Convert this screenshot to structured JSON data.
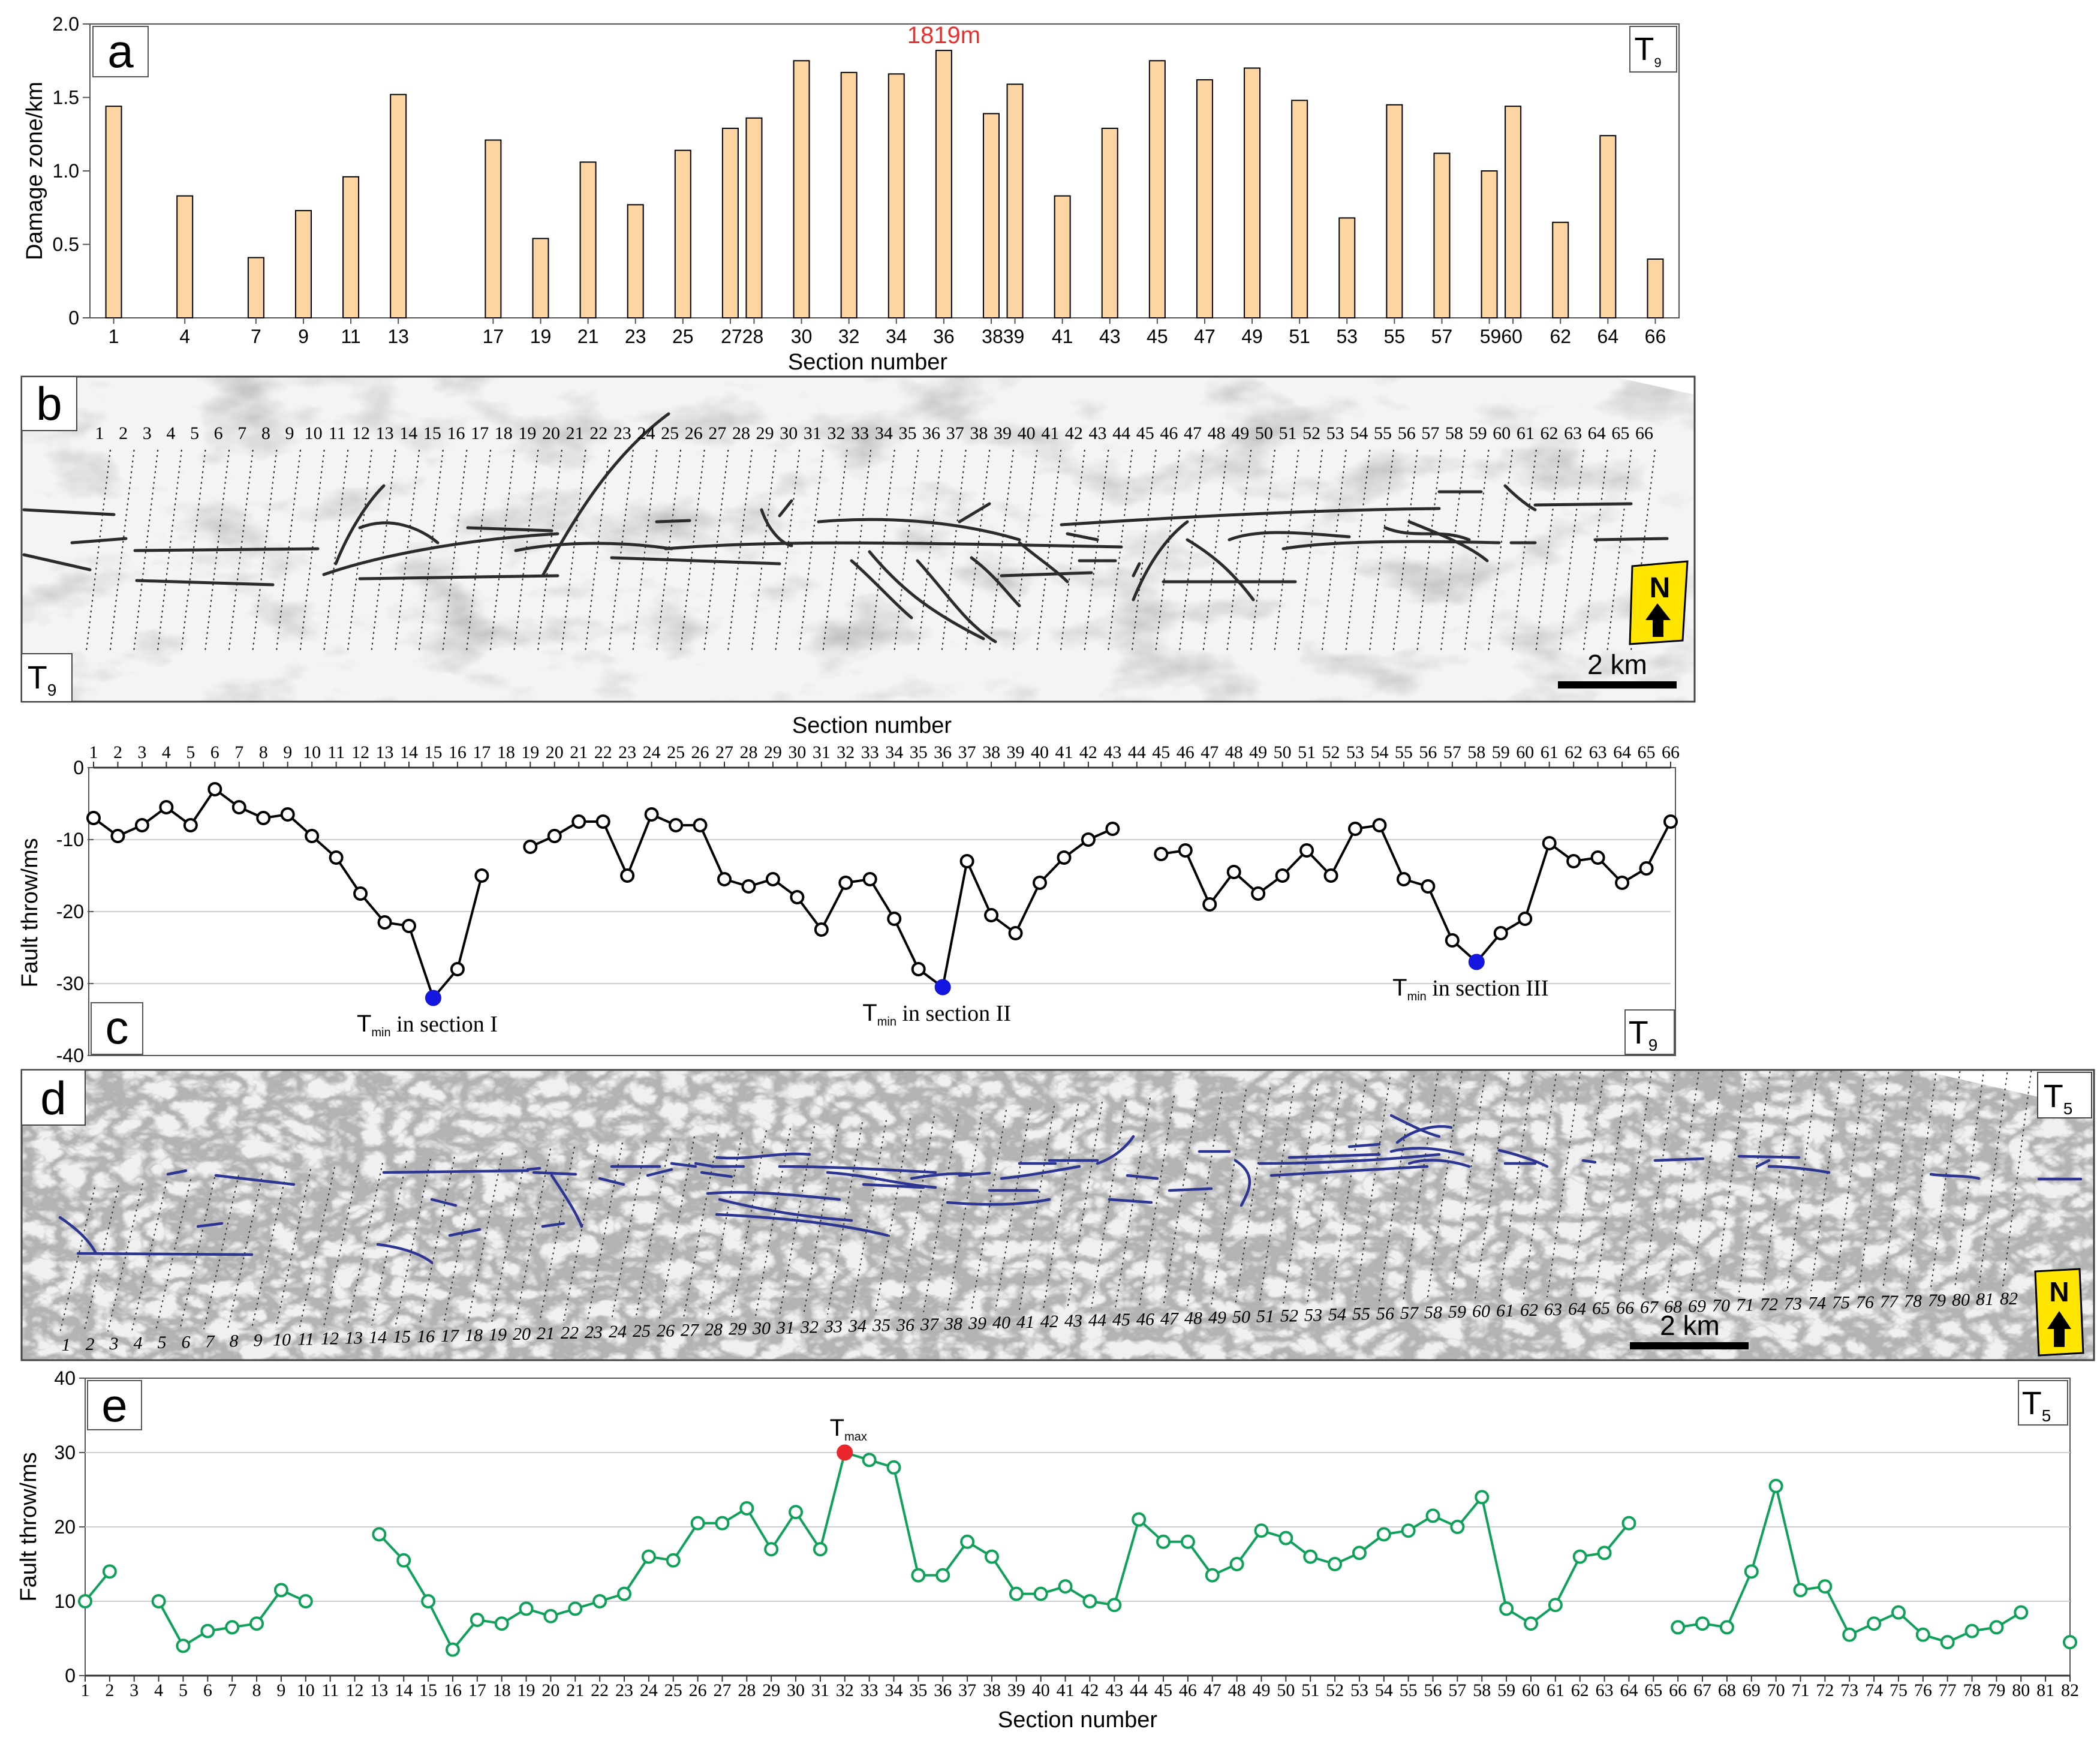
{
  "panels": {
    "a": {
      "label": "a",
      "horizon": "T",
      "horizon_sub": "9"
    },
    "b": {
      "label": "b",
      "horizon": "T",
      "horizon_sub": "9",
      "scale_text": "2 km",
      "north_text": "N"
    },
    "c": {
      "label": "c",
      "horizon": "T",
      "horizon_sub": "9",
      "top_axis_title": "Section number"
    },
    "d": {
      "label": "d",
      "horizon": "T",
      "horizon_sub": "5",
      "scale_text": "2 km",
      "north_text": "N"
    },
    "e": {
      "label": "e",
      "horizon": "T",
      "horizon_sub": "5"
    }
  },
  "chart_data": [
    {
      "id": "a",
      "type": "bar",
      "xlabel": "Section number",
      "ylabel": "Damage zone/km",
      "ylim": [
        0,
        2.0
      ],
      "yticks": [
        "0",
        "0.5",
        "1.0",
        "1.5",
        "2.0"
      ],
      "x_range": [
        0,
        67
      ],
      "grid": false,
      "bar_color": "#fcd5a2",
      "annotation": {
        "text": "1819m",
        "at_section": 36,
        "color": "#e8312f"
      },
      "bars": [
        {
          "section": 1,
          "value": 1.44,
          "label": "1"
        },
        {
          "section": 4,
          "value": 0.83,
          "label": "4"
        },
        {
          "section": 7,
          "value": 0.41,
          "label": "7"
        },
        {
          "section": 9,
          "value": 0.73,
          "label": "9"
        },
        {
          "section": 11,
          "value": 0.96,
          "label": "11"
        },
        {
          "section": 13,
          "value": 1.52,
          "label": "13"
        },
        {
          "section": 17,
          "value": 1.21,
          "label": "17"
        },
        {
          "section": 19,
          "value": 0.54,
          "label": "19"
        },
        {
          "section": 21,
          "value": 1.06,
          "label": "21"
        },
        {
          "section": 23,
          "value": 0.77,
          "label": "23"
        },
        {
          "section": 25,
          "value": 1.14,
          "label": "25"
        },
        {
          "section": 27,
          "value": 1.29,
          "label": ""
        },
        {
          "section": 28,
          "value": 1.36,
          "label": ""
        },
        {
          "section": 30,
          "value": 1.75,
          "label": "30"
        },
        {
          "section": 32,
          "value": 1.67,
          "label": "32"
        },
        {
          "section": 34,
          "value": 1.66,
          "label": "34"
        },
        {
          "section": 36,
          "value": 1.82,
          "label": "36"
        },
        {
          "section": 38,
          "value": 1.39,
          "label": ""
        },
        {
          "section": 39,
          "value": 1.59,
          "label": ""
        },
        {
          "section": 41,
          "value": 0.83,
          "label": "41"
        },
        {
          "section": 43,
          "value": 1.29,
          "label": "43"
        },
        {
          "section": 45,
          "value": 1.75,
          "label": "45"
        },
        {
          "section": 47,
          "value": 1.62,
          "label": "47"
        },
        {
          "section": 49,
          "value": 1.7,
          "label": "49"
        },
        {
          "section": 51,
          "value": 1.48,
          "label": "51"
        },
        {
          "section": 53,
          "value": 0.68,
          "label": "53"
        },
        {
          "section": 55,
          "value": 1.45,
          "label": "55"
        },
        {
          "section": 57,
          "value": 1.12,
          "label": "57"
        },
        {
          "section": 59,
          "value": 1.0,
          "label": ""
        },
        {
          "section": 60,
          "value": 1.44,
          "label": ""
        },
        {
          "section": 62,
          "value": 0.65,
          "label": "62"
        },
        {
          "section": 64,
          "value": 1.24,
          "label": "64"
        },
        {
          "section": 66,
          "value": 0.4,
          "label": "66"
        }
      ],
      "group_labels": [
        {
          "text": "2728",
          "at": 27.5
        },
        {
          "text": "3839",
          "at": 38.5
        },
        {
          "text": "5960",
          "at": 59.5
        }
      ]
    },
    {
      "id": "c",
      "type": "line",
      "xlabel": "Section number",
      "ylabel": "Fault throw/ms",
      "ylim": [
        -40,
        0
      ],
      "yticks": [
        "0",
        "-10",
        "-20",
        "-30",
        "-40"
      ],
      "x_range": [
        1,
        66
      ],
      "grid": true,
      "line_color": "#000000",
      "min_color": "#1515e0",
      "series": [
        {
          "sections": [
            1,
            2,
            3,
            4,
            5,
            6,
            7,
            8,
            9,
            10,
            11,
            12,
            13,
            14,
            15,
            16,
            17
          ],
          "values": [
            -7,
            -9.5,
            -8,
            -5.5,
            -8,
            -3,
            -5.5,
            -7,
            -6.5,
            -9.5,
            -12.5,
            -17.5,
            -21.5,
            -22,
            -32,
            -28,
            -15
          ]
        },
        {
          "sections": [
            19,
            20,
            21,
            22,
            23,
            24,
            25,
            26,
            27,
            28,
            29,
            30,
            31,
            32,
            33,
            34,
            35,
            36,
            37,
            38,
            39,
            40,
            41,
            42,
            43
          ],
          "values": [
            -11,
            -9.5,
            -7.5,
            -7.5,
            -15,
            -6.5,
            -8,
            -8,
            -15.5,
            -16.5,
            -15.5,
            -18,
            -22.5,
            -16,
            -15.5,
            -21,
            -28,
            -30.5,
            -13,
            -20.5,
            -23,
            -16,
            -12.5,
            -10,
            -8.5
          ]
        },
        {
          "sections": [
            45,
            46,
            47,
            48,
            49,
            50,
            51,
            52,
            53,
            54,
            55,
            56,
            57,
            58,
            59,
            60,
            61,
            62,
            63,
            64,
            65,
            66
          ],
          "values": [
            -12,
            -11.5,
            -19,
            -14.5,
            -17.5,
            -15,
            -11.5,
            -15,
            -8.5,
            -8,
            -15.5,
            -16.5,
            -24,
            -27,
            -23,
            -21,
            -10.5,
            -13,
            -12.5,
            -16,
            -14,
            -7.5
          ]
        }
      ],
      "minima": [
        {
          "section": 15,
          "value": -32,
          "label": "in section I"
        },
        {
          "section": 36,
          "value": -30.5,
          "label": "in section II"
        },
        {
          "section": 58,
          "value": -27,
          "label": "in section III"
        }
      ],
      "min_symbol": "T",
      "min_subscript": "min"
    },
    {
      "id": "e",
      "type": "line",
      "xlabel": "Section number",
      "ylabel": "Fault throw/ms",
      "ylim": [
        0,
        40
      ],
      "yticks": [
        "0",
        "10",
        "20",
        "30",
        "40"
      ],
      "x_range": [
        1,
        82
      ],
      "grid": true,
      "line_color": "#0fa05a",
      "max_color": "#e8262b",
      "series": [
        {
          "sections": [
            1,
            2
          ],
          "values": [
            10,
            14
          ]
        },
        {
          "sections": [
            4,
            5,
            6,
            7,
            8,
            9,
            10
          ],
          "values": [
            10,
            4,
            6,
            6.5,
            7,
            11.5,
            10
          ]
        },
        {
          "sections": [
            13,
            14,
            15,
            16,
            17,
            18,
            19,
            20,
            21,
            22,
            23,
            24,
            25,
            26,
            27,
            28,
            29,
            30,
            31,
            32,
            33,
            34,
            35,
            36,
            37,
            38,
            39,
            40,
            41,
            42,
            43,
            44,
            45,
            46,
            47,
            48,
            49,
            50,
            51,
            52,
            53,
            54,
            55,
            56,
            57,
            58,
            59,
            60,
            61,
            62,
            63,
            64
          ],
          "values": [
            19,
            15.5,
            10,
            3.5,
            7.5,
            7,
            9,
            8,
            9,
            10,
            11,
            16,
            15.5,
            20.5,
            20.5,
            22.5,
            17,
            22,
            17,
            30,
            29,
            28,
            13.5,
            13.5,
            18,
            16,
            11,
            11,
            12,
            10,
            9.5,
            21,
            18,
            18,
            13.5,
            15,
            19.5,
            18.5,
            16,
            15,
            16.5,
            19,
            19.5,
            21.5,
            20,
            24,
            9,
            7,
            9.5,
            16,
            16.5,
            20.5
          ]
        },
        {
          "sections": [
            66,
            67,
            68,
            69,
            70,
            71,
            72,
            73,
            74,
            75,
            76,
            77,
            78,
            79,
            80
          ],
          "values": [
            6.5,
            7,
            6.5,
            14,
            25.5,
            11.5,
            12,
            5.5,
            7,
            8.5,
            5.5,
            4.5,
            6,
            6.5,
            8.5
          ]
        },
        {
          "sections": [
            82
          ],
          "values": [
            4.5
          ]
        }
      ],
      "max": {
        "section": 32,
        "value": 30,
        "symbol": "T",
        "subscript": "max"
      }
    }
  ],
  "map_b": {
    "section_labels_count": 66,
    "fault_color": "#2b2b2b"
  },
  "map_d": {
    "section_labels_count": 82,
    "fault_color": "#2c3592"
  }
}
